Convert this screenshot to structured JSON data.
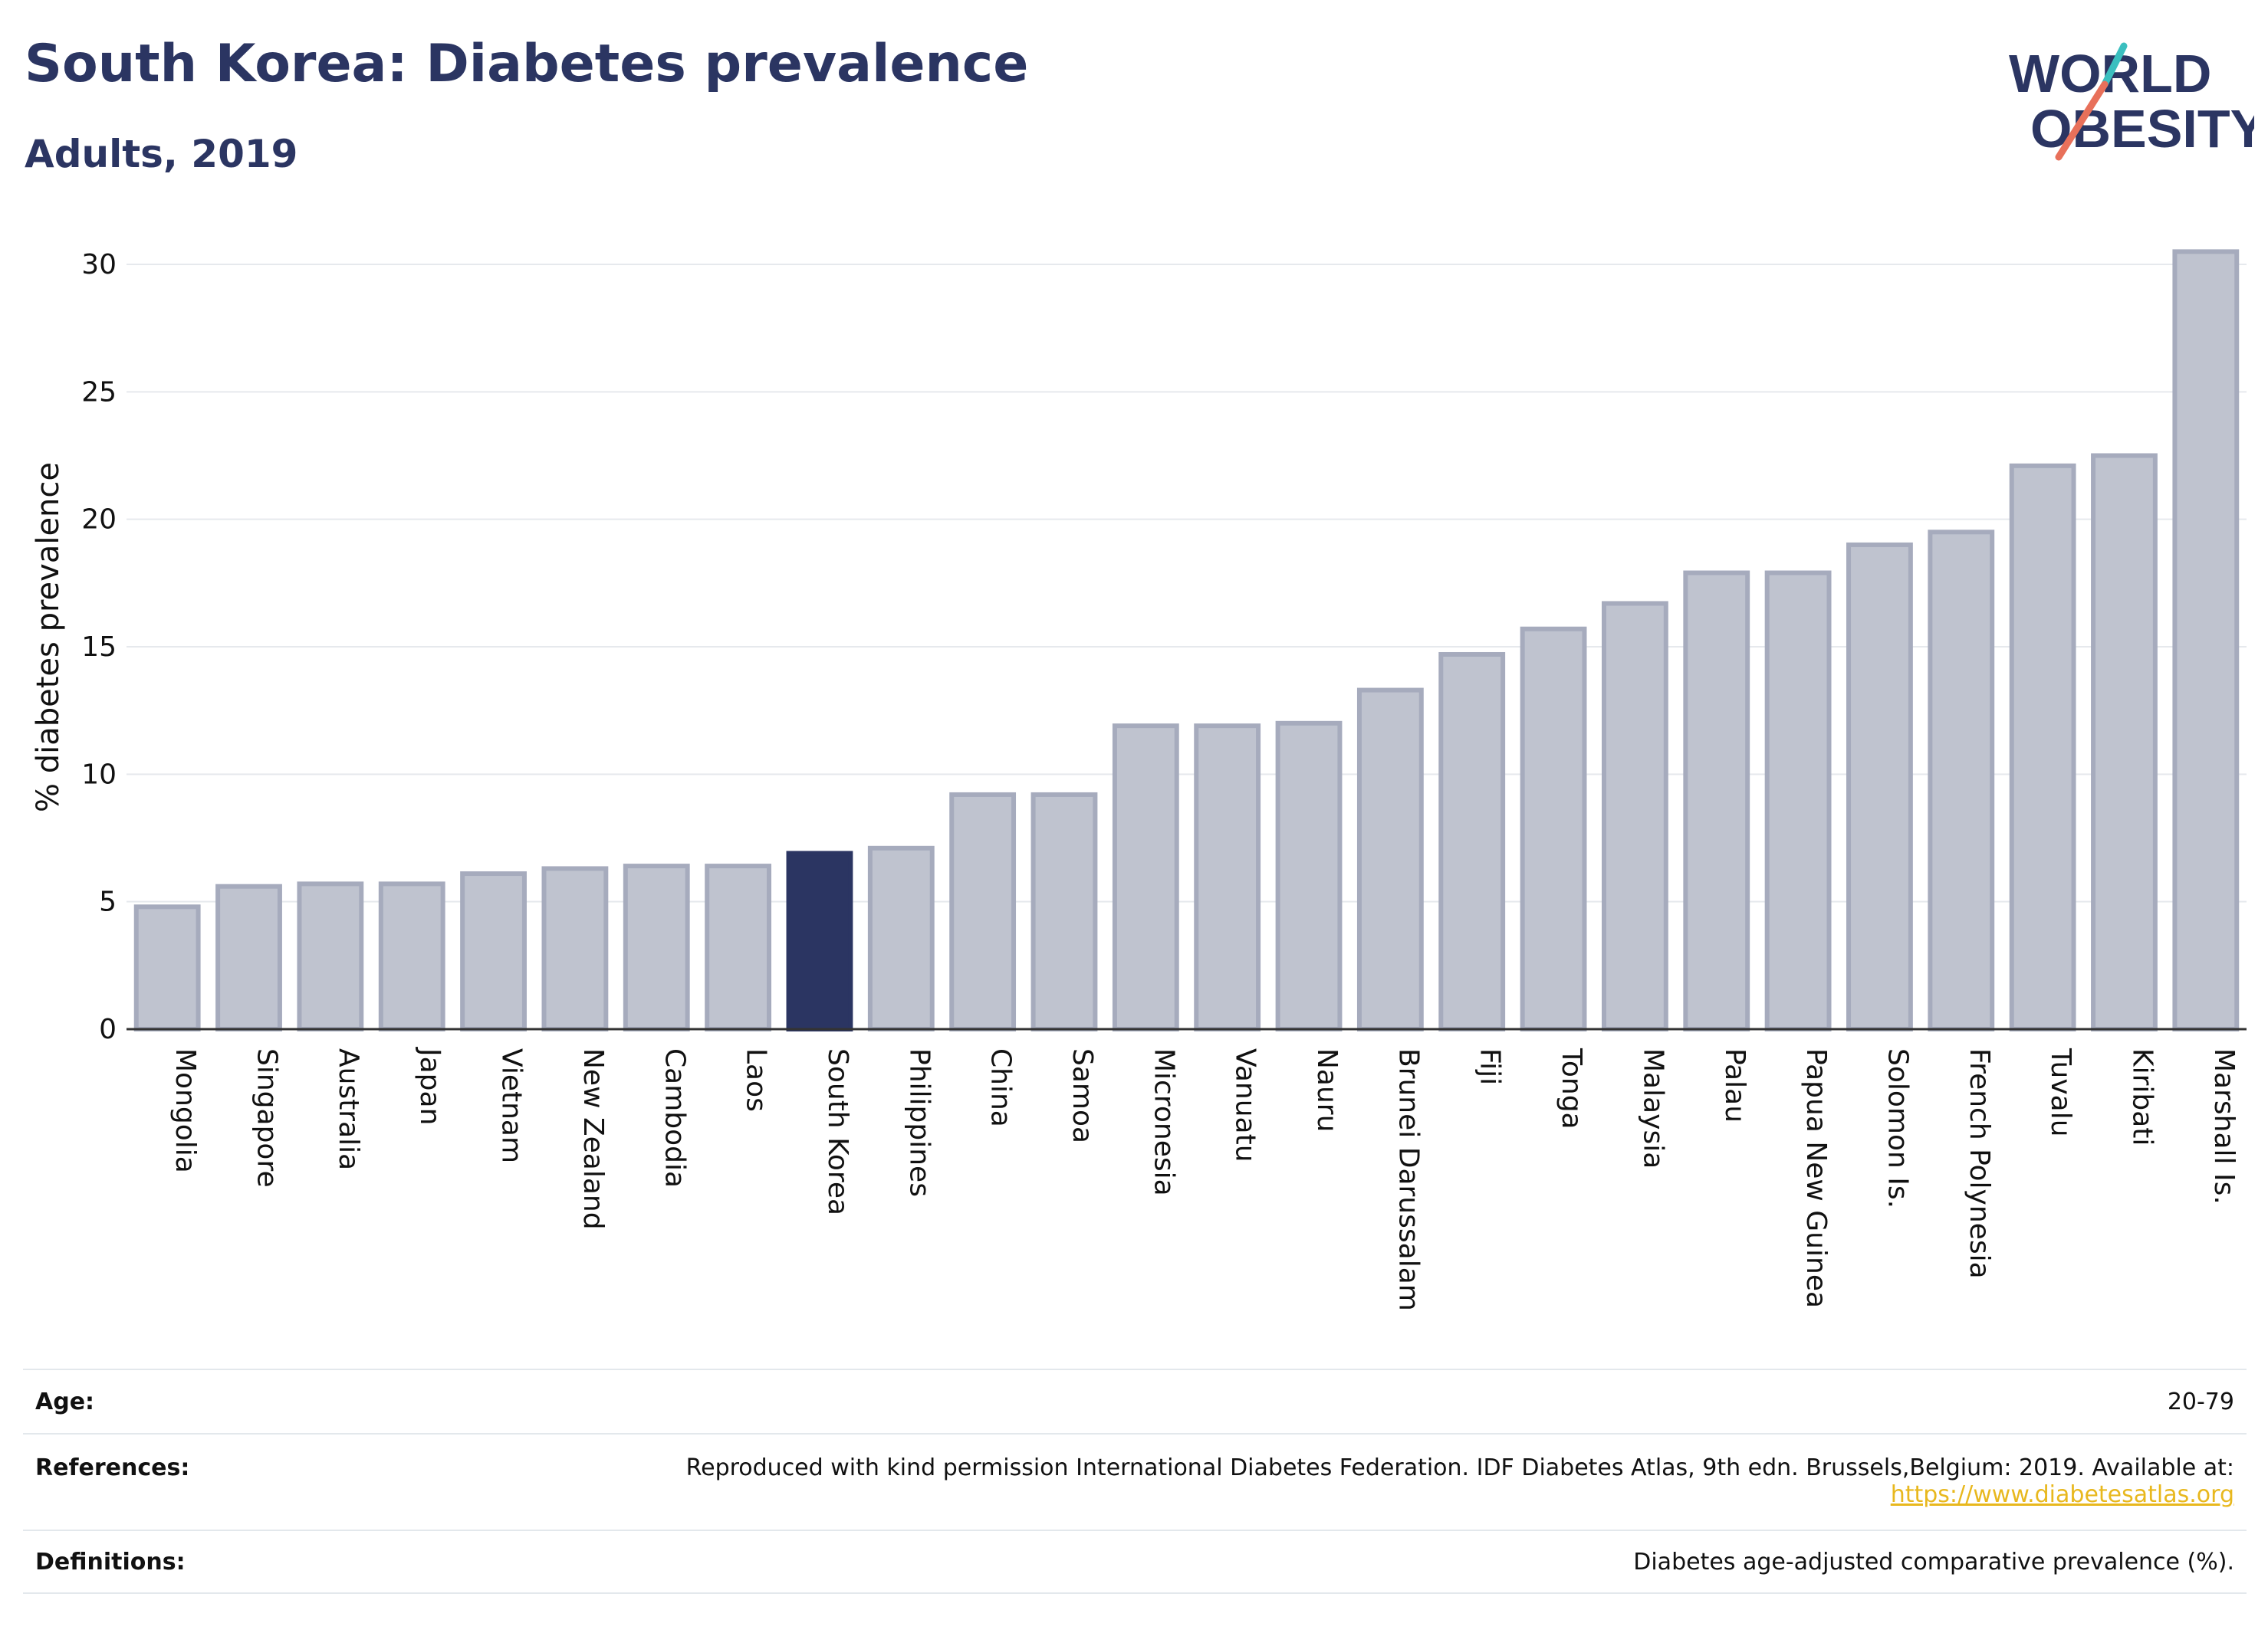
{
  "header": {
    "title": "South Korea: Diabetes prevalence",
    "subtitle": "Adults, 2019"
  },
  "logo": {
    "line1": "WORLD",
    "line2": "OBESITY",
    "accent_colors": [
      "#3bbfbf",
      "#e8705a"
    ]
  },
  "colors": {
    "bar": "#bfc3cf",
    "bar_border": "#a6abbd",
    "highlight": "#2b3562",
    "title": "#2b3562",
    "link": "#e8b81e"
  },
  "chart_data": {
    "type": "bar",
    "ylabel": "% diabetes prevalence",
    "xlabel": "",
    "ylim": [
      0,
      30
    ],
    "yticks": [
      0,
      5,
      10,
      15,
      20,
      25,
      30
    ],
    "grid": true,
    "highlight_category": "South Korea",
    "categories": [
      "Mongolia",
      "Singapore",
      "Australia",
      "Japan",
      "Vietnam",
      "New Zealand",
      "Cambodia",
      "Laos",
      "South Korea",
      "Philippines",
      "China",
      "Samoa",
      "Micronesia",
      "Vanuatu",
      "Nauru",
      "Brunei Darussalam",
      "Fiji",
      "Tonga",
      "Malaysia",
      "Palau",
      "Papua New Guinea",
      "Solomon Is.",
      "French Polynesia",
      "Tuvalu",
      "Kiribati",
      "Marshall Is."
    ],
    "values": [
      4.8,
      5.6,
      5.7,
      5.7,
      6.1,
      6.3,
      6.4,
      6.4,
      6.9,
      7.1,
      9.2,
      9.2,
      11.9,
      11.9,
      12.0,
      13.3,
      14.7,
      15.7,
      16.7,
      17.9,
      17.9,
      19.0,
      19.5,
      22.1,
      22.5,
      30.5
    ]
  },
  "footer": {
    "age_label": "Age:",
    "age_value": "20-79",
    "references_label": "References:",
    "references_text": "Reproduced with kind permission International Diabetes Federation. IDF Diabetes Atlas, 9th edn. Brussels,Belgium: 2019. Available at:",
    "references_link": "https://www.diabetesatlas.org",
    "definitions_label": "Definitions:",
    "definitions_value": "Diabetes age-adjusted comparative prevalence (%)."
  }
}
